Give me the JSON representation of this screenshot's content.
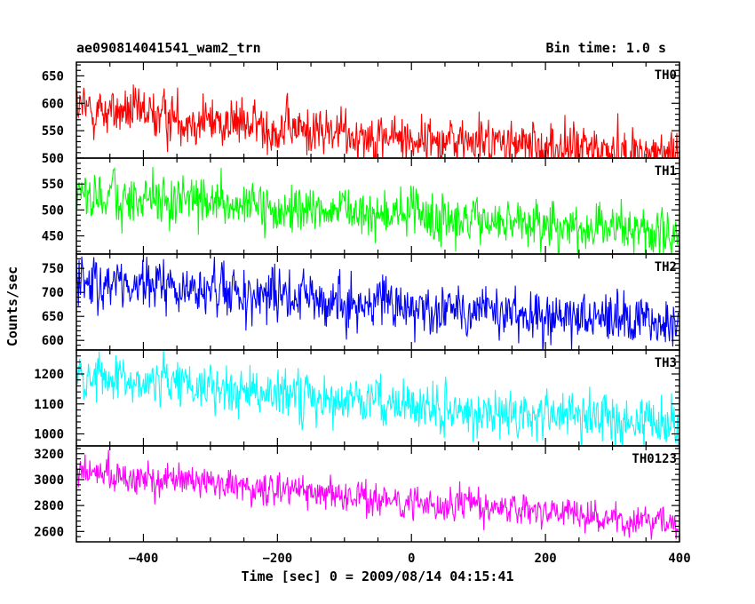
{
  "header": {
    "title": "ae090814041541_wam2_trn",
    "bin_time": "Bin time: 1.0 s"
  },
  "chart_data": {
    "type": "line",
    "title": "ae090814041541_wam2_trn",
    "subtitle": "Bin time: 1.0 s",
    "xlabel": "Time [sec] 0 = 2009/08/14 04:15:41",
    "ylabel": "Counts/sec",
    "xlim": [
      -500,
      400
    ],
    "x_ticks": [
      -400,
      -200,
      0,
      200,
      400
    ],
    "x_start": -502,
    "x_end": 398,
    "x_step": 1,
    "panels": [
      {
        "name": "TH0",
        "color": "#ff0000",
        "ylim": [
          500,
          675
        ],
        "y_ticks": [
          500,
          550,
          600,
          650
        ],
        "trend": [
          [
            -500,
            590
          ],
          [
            -400,
            580
          ],
          [
            -300,
            568
          ],
          [
            -200,
            555
          ],
          [
            -100,
            545
          ],
          [
            0,
            535
          ],
          [
            100,
            530
          ],
          [
            200,
            520
          ],
          [
            300,
            512
          ],
          [
            400,
            505
          ]
        ],
        "noise": 24
      },
      {
        "name": "TH1",
        "color": "#00ff00",
        "ylim": [
          415,
          600
        ],
        "y_ticks": [
          450,
          500,
          550
        ],
        "trend": [
          [
            -500,
            530
          ],
          [
            -400,
            520
          ],
          [
            -300,
            510
          ],
          [
            -200,
            500
          ],
          [
            -100,
            495
          ],
          [
            0,
            488
          ],
          [
            100,
            480
          ],
          [
            200,
            470
          ],
          [
            300,
            463
          ],
          [
            400,
            455
          ]
        ],
        "noise": 24
      },
      {
        "name": "TH2",
        "color": "#0000ff",
        "ylim": [
          580,
          780
        ],
        "y_ticks": [
          600,
          650,
          700,
          750
        ],
        "trend": [
          [
            -500,
            725
          ],
          [
            -400,
            712
          ],
          [
            -300,
            700
          ],
          [
            -200,
            690
          ],
          [
            -100,
            680
          ],
          [
            0,
            672
          ],
          [
            100,
            662
          ],
          [
            200,
            652
          ],
          [
            300,
            643
          ],
          [
            400,
            635
          ]
        ],
        "noise": 28
      },
      {
        "name": "TH3",
        "color": "#00ffff",
        "ylim": [
          960,
          1280
        ],
        "y_ticks": [
          1000,
          1100,
          1200
        ],
        "trend": [
          [
            -500,
            1195
          ],
          [
            -400,
            1175
          ],
          [
            -300,
            1155
          ],
          [
            -200,
            1135
          ],
          [
            -100,
            1110
          ],
          [
            0,
            1090
          ],
          [
            100,
            1075
          ],
          [
            200,
            1060
          ],
          [
            300,
            1045
          ],
          [
            400,
            1030
          ]
        ],
        "noise": 42
      },
      {
        "name": "TH0123",
        "color": "#ff00ff",
        "ylim": [
          2520,
          3260
        ],
        "y_ticks": [
          2600,
          2800,
          3000,
          3200
        ],
        "trend": [
          [
            -500,
            3060
          ],
          [
            -400,
            3000
          ],
          [
            -300,
            2960
          ],
          [
            -200,
            2920
          ],
          [
            -100,
            2870
          ],
          [
            0,
            2830
          ],
          [
            100,
            2790
          ],
          [
            200,
            2750
          ],
          [
            300,
            2700
          ],
          [
            400,
            2665
          ]
        ],
        "noise": 65
      }
    ]
  }
}
